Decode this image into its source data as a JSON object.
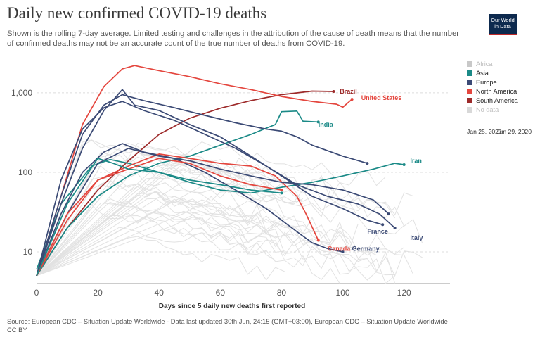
{
  "header": {
    "title": "Daily new confirmed COVID-19 deaths",
    "subtitle": "Shown is the rolling 7-day average. Limited testing and challenges in the attribution of the cause of death means that the number of confirmed deaths may not be an accurate count of the true number of deaths from COVID-19.",
    "logo_text": "Our World in Data"
  },
  "legend": [
    {
      "label": "Africa",
      "color": "#c8c8c8",
      "muted": true
    },
    {
      "label": "Asia",
      "color": "#1b8a87",
      "muted": false
    },
    {
      "label": "Europe",
      "color": "#3b4a75",
      "muted": false
    },
    {
      "label": "North America",
      "color": "#e4463e",
      "muted": false
    },
    {
      "label": "South America",
      "color": "#9d2a2a",
      "muted": false
    },
    {
      "label": "No data",
      "color": "#d8d8d8",
      "muted": true
    }
  ],
  "timeline": {
    "start": "Jan 25, 2020",
    "end": "Jun 29, 2020"
  },
  "footer": {
    "source": "Source: European CDC – Situation Update Worldwide - Data last updated 30th Jun, 24:15 (GMT+03:00), European CDC – Situation Update Worldwide",
    "license": "CC BY"
  },
  "chart_data": {
    "type": "line",
    "title": "Daily new confirmed COVID-19 deaths",
    "xlabel": "Days since 5 daily new deaths first reported",
    "ylabel": "",
    "yscale": "log",
    "xlim": [
      0,
      135
    ],
    "ylim": [
      4,
      3000
    ],
    "x_ticks": [
      0,
      20,
      40,
      60,
      80,
      100,
      120
    ],
    "y_ticks": [
      10,
      100,
      1000
    ],
    "y_tick_labels": [
      "10",
      "100",
      "1,000"
    ],
    "grid": "horizontal dashed",
    "series": [
      {
        "name": "Brazil",
        "color": "#9d2a2a",
        "points": [
          [
            0,
            5
          ],
          [
            10,
            20
          ],
          [
            20,
            60
          ],
          [
            30,
            140
          ],
          [
            40,
            300
          ],
          [
            50,
            480
          ],
          [
            60,
            640
          ],
          [
            70,
            800
          ],
          [
            80,
            950
          ],
          [
            90,
            1050
          ],
          [
            97,
            1040
          ]
        ]
      },
      {
        "name": "United States",
        "color": "#e4463e",
        "points": [
          [
            0,
            5
          ],
          [
            8,
            50
          ],
          [
            15,
            400
          ],
          [
            22,
            1200
          ],
          [
            28,
            2000
          ],
          [
            32,
            2200
          ],
          [
            40,
            1900
          ],
          [
            50,
            1600
          ],
          [
            60,
            1300
          ],
          [
            70,
            1100
          ],
          [
            80,
            900
          ],
          [
            90,
            780
          ],
          [
            98,
            720
          ],
          [
            100,
            660
          ],
          [
            103,
            830
          ]
        ]
      },
      {
        "name": "India",
        "color": "#1b8a87",
        "points": [
          [
            0,
            5
          ],
          [
            10,
            20
          ],
          [
            20,
            50
          ],
          [
            30,
            90
          ],
          [
            40,
            130
          ],
          [
            50,
            160
          ],
          [
            60,
            220
          ],
          [
            70,
            300
          ],
          [
            78,
            400
          ],
          [
            80,
            580
          ],
          [
            85,
            590
          ],
          [
            87,
            440
          ],
          [
            92,
            430
          ]
        ]
      },
      {
        "name": "Iran",
        "color": "#1b8a87",
        "points": [
          [
            0,
            6
          ],
          [
            8,
            40
          ],
          [
            18,
            120
          ],
          [
            24,
            145
          ],
          [
            30,
            130
          ],
          [
            40,
            100
          ],
          [
            50,
            75
          ],
          [
            60,
            60
          ],
          [
            70,
            55
          ],
          [
            80,
            65
          ],
          [
            90,
            75
          ],
          [
            100,
            90
          ],
          [
            110,
            110
          ],
          [
            117,
            130
          ],
          [
            120,
            125
          ]
        ]
      },
      {
        "name": "Italy",
        "color": "#3b4a75",
        "points": [
          [
            0,
            5
          ],
          [
            8,
            80
          ],
          [
            15,
            350
          ],
          [
            22,
            650
          ],
          [
            28,
            780
          ],
          [
            35,
            600
          ],
          [
            45,
            450
          ],
          [
            55,
            300
          ],
          [
            65,
            200
          ],
          [
            75,
            120
          ],
          [
            85,
            70
          ],
          [
            95,
            50
          ],
          [
            105,
            40
          ],
          [
            112,
            30
          ],
          [
            117,
            20
          ]
        ]
      },
      {
        "name": "France",
        "color": "#3b4a75",
        "points": [
          [
            0,
            5
          ],
          [
            8,
            40
          ],
          [
            15,
            200
          ],
          [
            22,
            600
          ],
          [
            28,
            1100
          ],
          [
            32,
            700
          ],
          [
            40,
            600
          ],
          [
            50,
            400
          ],
          [
            60,
            280
          ],
          [
            70,
            160
          ],
          [
            80,
            90
          ],
          [
            90,
            50
          ],
          [
            100,
            35
          ],
          [
            108,
            25
          ],
          [
            113,
            22
          ]
        ]
      },
      {
        "name": "Germany",
        "color": "#3b4a75",
        "points": [
          [
            0,
            5
          ],
          [
            8,
            30
          ],
          [
            15,
            100
          ],
          [
            22,
            180
          ],
          [
            28,
            230
          ],
          [
            35,
            180
          ],
          [
            45,
            150
          ],
          [
            55,
            100
          ],
          [
            65,
            60
          ],
          [
            75,
            35
          ],
          [
            85,
            18
          ],
          [
            90,
            13
          ],
          [
            95,
            11
          ],
          [
            100,
            10
          ]
        ]
      },
      {
        "name": "Canada",
        "color": "#e4463e",
        "points": [
          [
            0,
            5
          ],
          [
            10,
            25
          ],
          [
            20,
            80
          ],
          [
            30,
            120
          ],
          [
            40,
            170
          ],
          [
            50,
            150
          ],
          [
            60,
            130
          ],
          [
            70,
            120
          ],
          [
            78,
            90
          ],
          [
            85,
            50
          ],
          [
            88,
            30
          ],
          [
            92,
            14
          ]
        ]
      },
      {
        "name": "",
        "color": "#3b4a75",
        "points": [
          [
            0,
            5
          ],
          [
            8,
            50
          ],
          [
            15,
            300
          ],
          [
            22,
            700
          ],
          [
            28,
            950
          ],
          [
            35,
            800
          ],
          [
            45,
            650
          ],
          [
            55,
            520
          ],
          [
            65,
            420
          ],
          [
            75,
            350
          ],
          [
            80,
            330
          ],
          [
            85,
            280
          ],
          [
            90,
            220
          ],
          [
            100,
            160
          ],
          [
            108,
            130
          ]
        ]
      },
      {
        "name": "",
        "color": "#3b4a75",
        "points": [
          [
            0,
            5
          ],
          [
            10,
            30
          ],
          [
            20,
            130
          ],
          [
            30,
            200
          ],
          [
            40,
            160
          ],
          [
            50,
            140
          ],
          [
            60,
            110
          ],
          [
            70,
            90
          ],
          [
            80,
            75
          ],
          [
            90,
            70
          ],
          [
            100,
            60
          ],
          [
            110,
            45
          ],
          [
            115,
            30
          ]
        ]
      },
      {
        "name": "",
        "color": "#e4463e",
        "points": [
          [
            0,
            5
          ],
          [
            10,
            30
          ],
          [
            20,
            80
          ],
          [
            30,
            110
          ],
          [
            40,
            150
          ],
          [
            50,
            130
          ],
          [
            60,
            90
          ],
          [
            70,
            70
          ],
          [
            80,
            60
          ]
        ]
      },
      {
        "name": "",
        "color": "#1b8a87",
        "points": [
          [
            0,
            5
          ],
          [
            10,
            40
          ],
          [
            20,
            150
          ],
          [
            25,
            130
          ],
          [
            30,
            110
          ],
          [
            40,
            100
          ],
          [
            50,
            80
          ],
          [
            60,
            70
          ],
          [
            70,
            60
          ],
          [
            80,
            55
          ]
        ]
      }
    ],
    "series_labels": [
      {
        "text": "Brazil",
        "x": 99,
        "y": 1040
      },
      {
        "text": "United States",
        "x": 106,
        "y": 870
      },
      {
        "text": "India",
        "x": 92,
        "y": 400
      },
      {
        "text": "Iran",
        "x": 122,
        "y": 140
      },
      {
        "text": "France",
        "x": 108,
        "y": 18
      },
      {
        "text": "Italy",
        "x": 122,
        "y": 15
      },
      {
        "text": "Canada",
        "x": 95,
        "y": 11
      },
      {
        "text": "Germany",
        "x": 103,
        "y": 11
      }
    ]
  }
}
